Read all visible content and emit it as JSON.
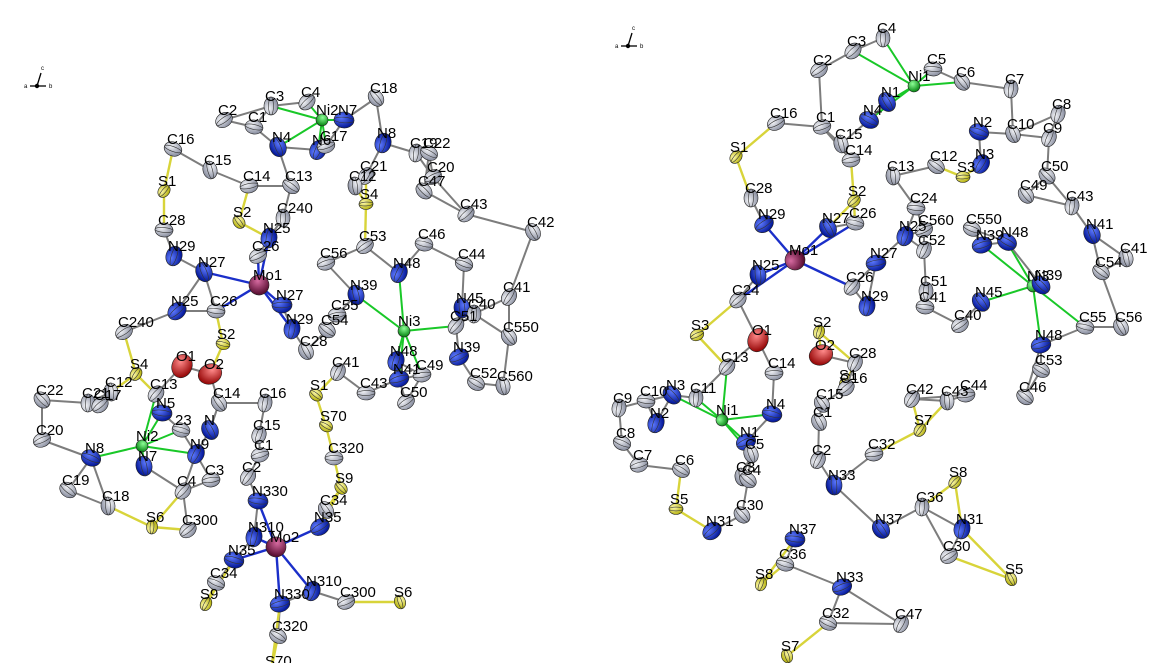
{
  "colors": {
    "Ni": "#19c828",
    "Mo": "#8a1f52",
    "N": "#0b2dd8",
    "S": "#e6e234",
    "C": "#b9bcc8",
    "O": "#d41818",
    "bond_Ni": "#19c828",
    "bond_Mo": "#1b2fc9",
    "bond_S": "#d8d43a",
    "bond": "#7d7d7d"
  },
  "orientation_axes": [
    {
      "name": "left-axis-triad",
      "labels": [
        "a",
        "b",
        "c"
      ]
    },
    {
      "name": "right-axis-triad",
      "labels": [
        "a",
        "b",
        "c"
      ]
    }
  ],
  "panels": [
    {
      "name": "left-structure",
      "labels": [
        "C3",
        "C4",
        "N7",
        "C18",
        "C19",
        "C2",
        "C1",
        "Ni2",
        "N8",
        "C20",
        "C16",
        "N4",
        "N6",
        "C17",
        "C22",
        "C15",
        "C21",
        "C14",
        "C13",
        "C12",
        "S1",
        "S4",
        "C47",
        "C240",
        "C43",
        "C28",
        "S2",
        "N25",
        "C53",
        "C46",
        "C42",
        "N29",
        "C26",
        "C44",
        "N27",
        "N48",
        "C56",
        "Mo1",
        "N39",
        "C41",
        "C55",
        "C54",
        "N45",
        "C51",
        "N27",
        "Ni3",
        "C40",
        "N25",
        "C26",
        "C550",
        "N29",
        "C240",
        "S2",
        "C28",
        "N48",
        "N39",
        "O1",
        "O2",
        "C41",
        "N41",
        "C52",
        "C560",
        "S4",
        "C49",
        "S1",
        "C12",
        "C13",
        "C43",
        "C22",
        "C21",
        "C17",
        "N5",
        "C14",
        "C16",
        "C50",
        "23",
        "N",
        "C15",
        "C20",
        "N8",
        "Ni2",
        "N9",
        "C1",
        "S70",
        "N7",
        "C2",
        "C3",
        "C19",
        "C18",
        "C4",
        "C320",
        "S9",
        "S6",
        "C300",
        "N330",
        "C34",
        "N310",
        "N35",
        "N35",
        "Mo2",
        "N310",
        "C300",
        "C34",
        "S6",
        "S9",
        "N330",
        "C320",
        "S70"
      ]
    },
    {
      "name": "right-structure",
      "labels": [
        "C4",
        "C3",
        "C5",
        "C6",
        "C7",
        "C2",
        "Ni1",
        "N1",
        "C8",
        "C16",
        "N2",
        "C10",
        "C9",
        "C1",
        "N4",
        "C15",
        "N3",
        "C14",
        "C12",
        "C13",
        "S1",
        "S3",
        "C50",
        "C28",
        "S2",
        "C24",
        "C49",
        "C43",
        "N29",
        "C26",
        "N27",
        "N25",
        "C560",
        "C550",
        "N41",
        "C52",
        "N39",
        "N48",
        "C41",
        "Mo1",
        "N27",
        "C54",
        "N25",
        "C26",
        "Ni3",
        "N39",
        "C51",
        "C24",
        "C41",
        "N45",
        "N29",
        "C40",
        "C55",
        "C56",
        "S2",
        "S3",
        "O1",
        "O2",
        "C28",
        "N48",
        "C53",
        "S1",
        "C42",
        "C44",
        "C46",
        "C43",
        "C13",
        "C14",
        "N3",
        "C11",
        "C16",
        "C10",
        "C15",
        "C9",
        "Ni1",
        "N4",
        "C1",
        "N2",
        "N1",
        "C8",
        "C5",
        "C2",
        "C7",
        "C6",
        "C3",
        "S7",
        "C32",
        "C4",
        "N33",
        "S8",
        "S5",
        "C30",
        "C36",
        "N31",
        "N37",
        "N37",
        "N31",
        "C30",
        "C36",
        "S5",
        "S8",
        "N33",
        "C32",
        "S7",
        "C47"
      ]
    }
  ]
}
